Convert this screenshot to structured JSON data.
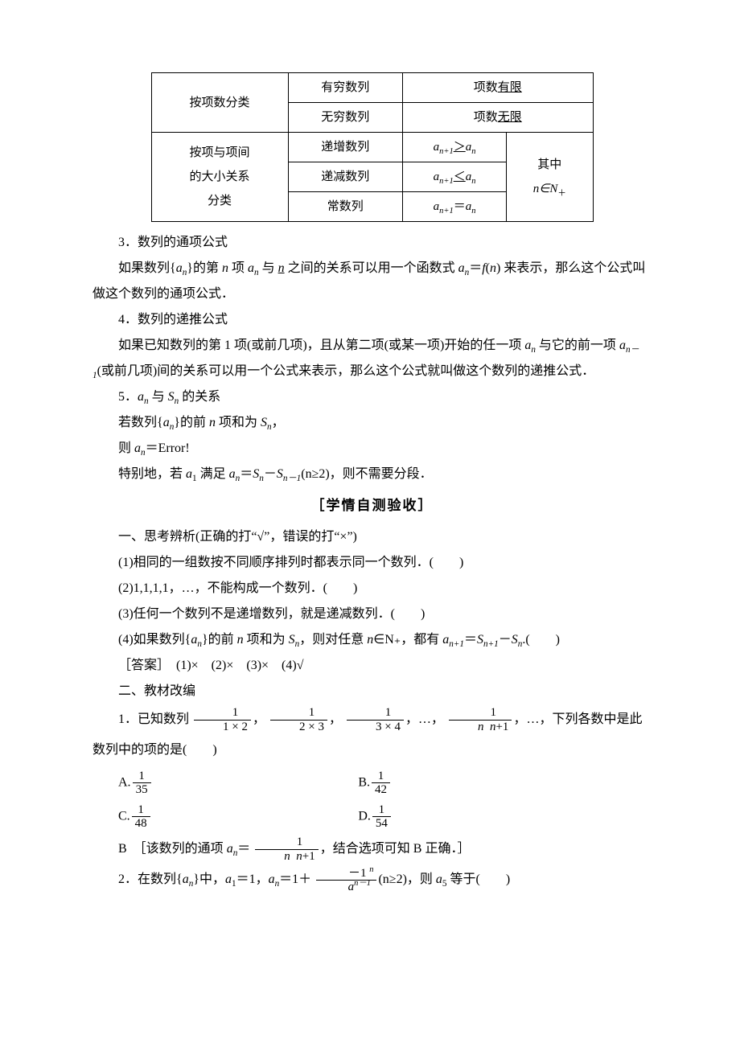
{
  "table": {
    "r1c1": "按项数分类",
    "r1c2": "有穷数列",
    "r1c3": "项数",
    "r1c3u": "有限",
    "r2c2": "无穷数列",
    "r2c3": "项数",
    "r2c3u": "无限",
    "r3c1": "按项与项间",
    "r3c1b": "的大小关系",
    "r3c1c": "分类",
    "r3c2": "递增数列",
    "r4c2": "递减数列",
    "r5c2": "常数列",
    "note1": "其中",
    "note2": "n∈N"
  },
  "s3": {
    "title": "3．数列的通项公式",
    "body1": "如果数列{",
    "body2": "}的第 ",
    "body3": " 项 ",
    "body4": " 与 ",
    "body5": " 之间的关系可以用一个函数式 ",
    "body6": " 来表示，那么这个公式叫做这个数列的通项公式．"
  },
  "s4": {
    "title": "4．数列的递推公式",
    "body": "如果已知数列的第 1 项(或前几项)，且从第二项(或某一项)开始的任一项 aₙ 与它的前一项 aₙ₋₁(或前几项)间的关系可以用一个公式来表示，那么这个公式就叫做这个数列的递推公式．"
  },
  "s5": {
    "title1": "5．",
    "title2": " 与 ",
    "title3": " 的关系",
    "l1a": "若数列{",
    "l1b": "}的前 ",
    "l1c": " 项和为 ",
    "l1d": "，",
    "l2a": "则 ",
    "l2b": "＝Error!",
    "l3a": "特别地，若 ",
    "l3b": " 满足 ",
    "l3c": "(n≥2)，则不需要分段．"
  },
  "test": {
    "title": "［学情自测验收］",
    "h1": "一、思考辨析(正确的打“√”，错误的打“×”)",
    "q1": "(1)相同的一组数按不同顺序排列时都表示同一个数列．(　　)",
    "q2": "(2)1,1,1,1，…，不能构成一个数列．(　　)",
    "q3": "(3)任何一个数列不是递增数列，就是递减数列．(　　)",
    "q4a": "(4)如果数列{",
    "q4b": "}的前 ",
    "q4c": " 项和为 ",
    "q4d": "，则对任意 ",
    "q4e": "∈N₊，都有 ",
    "q4f": ".(　　)",
    "ans": "［答案］　(1)×　(2)×　(3)×　(4)√",
    "h2": "二、教材改编"
  },
  "p1": {
    "lead": "1．已知数列",
    "sep": "，",
    "mid": "，…，",
    "tail": "，…，下列各数中是此数列中的项的是(　　)",
    "A": "A.",
    "B": "B.",
    "C": "C.",
    "D": "D.",
    "dA": "35",
    "dB": "42",
    "dC": "48",
    "dD": "54",
    "expl1": "B　［该数列的通项 ",
    "expl2": "＝",
    "expl3": "，结合选项可知 B 正确．］"
  },
  "p2": {
    "lead1": "2．在数列{",
    "lead2": "}中，",
    "lead3": "＝1，",
    "lead4": "＝1＋",
    "lead5": "(n≥2)，则 ",
    "lead6": " 等于(　　)"
  },
  "sym": {
    "an": "a",
    "Sn": "S",
    "n": "n",
    "one": "1",
    "np1": "n+1",
    "nm1": "n−1",
    "plus": "＋",
    "f": "f"
  }
}
